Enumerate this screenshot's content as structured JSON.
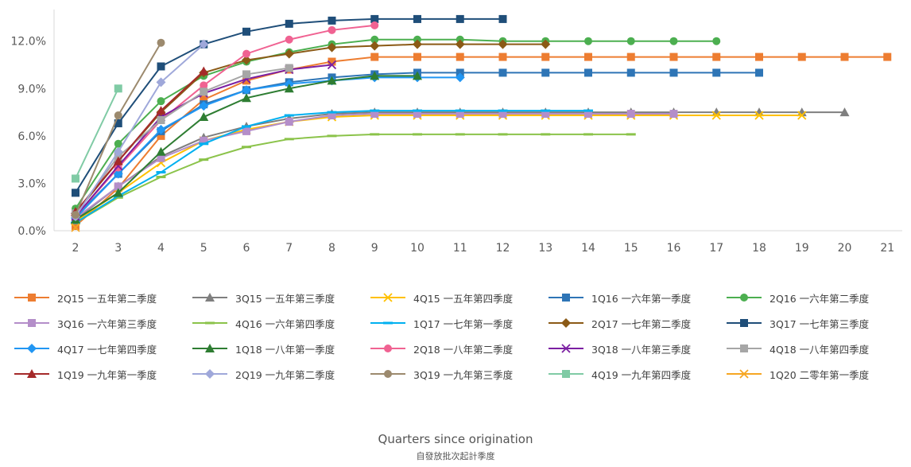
{
  "chart_data": {
    "type": "line",
    "xlabel": "Quarters since origination",
    "xlabel_zh": "自發放批次起計季度",
    "ylabel": "",
    "x_categories": [
      2,
      3,
      4,
      5,
      6,
      7,
      8,
      9,
      10,
      11,
      12,
      13,
      14,
      15,
      16,
      17,
      18,
      19,
      20,
      21
    ],
    "ylim": [
      0,
      0.14
    ],
    "yticks": [
      "0.0%",
      "3.0%",
      "6.0%",
      "9.0%",
      "12.0%"
    ],
    "ytick_values": [
      0,
      0.03,
      0.06,
      0.09,
      0.12
    ],
    "legend_position": "bottom",
    "series": [
      {
        "name": "2Q15 一五年第二季度",
        "color": "#ED7D31",
        "marker": "square",
        "start": 2,
        "values": [
          0.003,
          0.027,
          0.06,
          0.083,
          0.095,
          0.102,
          0.107,
          0.11,
          0.11,
          0.11,
          0.11,
          0.11,
          0.11,
          0.11,
          0.11,
          0.11,
          0.11,
          0.11,
          0.11,
          0.11
        ]
      },
      {
        "name": "3Q15 一五年第三季度",
        "color": "#7F7F7F",
        "marker": "triangle",
        "start": 2,
        "values": [
          0.007,
          0.028,
          0.047,
          0.059,
          0.066,
          0.071,
          0.074,
          0.075,
          0.075,
          0.075,
          0.075,
          0.075,
          0.075,
          0.075,
          0.075,
          0.075,
          0.075,
          0.075,
          0.075
        ]
      },
      {
        "name": "4Q15 一五年第四季度",
        "color": "#FFC000",
        "marker": "x",
        "start": 2,
        "values": [
          0.006,
          0.024,
          0.043,
          0.057,
          0.064,
          0.069,
          0.072,
          0.073,
          0.073,
          0.073,
          0.073,
          0.073,
          0.073,
          0.073,
          0.073,
          0.073,
          0.073,
          0.073
        ]
      },
      {
        "name": "1Q16 一六年第一季度",
        "color": "#2E75B6",
        "marker": "square",
        "start": 2,
        "values": [
          0.009,
          0.036,
          0.063,
          0.08,
          0.089,
          0.094,
          0.097,
          0.099,
          0.1,
          0.1,
          0.1,
          0.1,
          0.1,
          0.1,
          0.1,
          0.1,
          0.1
        ]
      },
      {
        "name": "2Q16 一六年第二季度",
        "color": "#4CAF50",
        "marker": "circle",
        "start": 2,
        "values": [
          0.014,
          0.055,
          0.082,
          0.098,
          0.107,
          0.113,
          0.118,
          0.121,
          0.121,
          0.121,
          0.12,
          0.12,
          0.12,
          0.12,
          0.12,
          0.12
        ]
      },
      {
        "name": "3Q16 一六年第三季度",
        "color": "#B48EC9",
        "marker": "square",
        "start": 2,
        "values": [
          0.008,
          0.028,
          0.046,
          0.057,
          0.063,
          0.069,
          0.073,
          0.074,
          0.074,
          0.074,
          0.074,
          0.074,
          0.074,
          0.074,
          0.074
        ]
      },
      {
        "name": "4Q16 一六年第四季度",
        "color": "#8BC34A",
        "marker": "dash",
        "start": 2,
        "values": [
          0.005,
          0.021,
          0.034,
          0.045,
          0.053,
          0.058,
          0.06,
          0.061,
          0.061,
          0.061,
          0.061,
          0.061,
          0.061,
          0.061
        ]
      },
      {
        "name": "1Q17 一七年第一季度",
        "color": "#00B0F0",
        "marker": "dash",
        "start": 2,
        "values": [
          0.005,
          0.022,
          0.037,
          0.055,
          0.066,
          0.073,
          0.075,
          0.076,
          0.076,
          0.076,
          0.076,
          0.076,
          0.076
        ]
      },
      {
        "name": "2Q17 一七年第二季度",
        "color": "#8B5A16",
        "marker": "diamond",
        "start": 2,
        "values": [
          0.011,
          0.044,
          0.075,
          0.1,
          0.108,
          0.112,
          0.116,
          0.117,
          0.118,
          0.118,
          0.118,
          0.118
        ]
      },
      {
        "name": "3Q17 一七年第三季度",
        "color": "#1F4E79",
        "marker": "square",
        "start": 2,
        "values": [
          0.024,
          0.068,
          0.104,
          0.118,
          0.126,
          0.131,
          0.133,
          0.134,
          0.134,
          0.134,
          0.134
        ]
      },
      {
        "name": "4Q17 一七年第四季度",
        "color": "#2196F3",
        "marker": "diamond",
        "start": 2,
        "values": [
          0.008,
          0.036,
          0.064,
          0.079,
          0.089,
          0.093,
          0.095,
          0.097,
          0.097,
          0.097
        ]
      },
      {
        "name": "1Q18 一八年第一季度",
        "color": "#2E7D32",
        "marker": "triangle",
        "start": 2,
        "values": [
          0.007,
          0.024,
          0.05,
          0.072,
          0.084,
          0.09,
          0.095,
          0.098,
          0.098
        ]
      },
      {
        "name": "2Q18 一八年第二季度",
        "color": "#F06292",
        "marker": "circle",
        "start": 2,
        "values": [
          0.009,
          0.04,
          0.07,
          0.092,
          0.112,
          0.121,
          0.127,
          0.13
        ]
      },
      {
        "name": "3Q18 一八年第三季度",
        "color": "#7B1FA2",
        "marker": "x",
        "start": 2,
        "values": [
          0.009,
          0.041,
          0.072,
          0.087,
          0.096,
          0.102,
          0.105
        ]
      },
      {
        "name": "4Q18 一八年第四季度",
        "color": "#A6A6A6",
        "marker": "square",
        "start": 2,
        "values": [
          0.011,
          0.047,
          0.07,
          0.088,
          0.099,
          0.103
        ]
      },
      {
        "name": "1Q19 一九年第一季度",
        "color": "#A52A2A",
        "marker": "triangle",
        "start": 2,
        "values": [
          0.012,
          0.044,
          0.076,
          0.101
        ]
      },
      {
        "name": "2Q19 一九年第二季度",
        "color": "#9FA8DA",
        "marker": "diamond",
        "start": 2,
        "values": [
          0.009,
          0.05,
          0.094,
          0.118
        ]
      },
      {
        "name": "3Q19 一九年第三季度",
        "color": "#9C8A6E",
        "marker": "circle",
        "start": 2,
        "values": [
          0.01,
          0.073,
          0.119
        ]
      },
      {
        "name": "4Q19 一九年第四季度",
        "color": "#80CBA5",
        "marker": "square",
        "start": 2,
        "values": [
          0.033,
          0.09
        ]
      },
      {
        "name": "1Q20 二零年第一季度",
        "color": "#F6A623",
        "marker": "x",
        "start": 2,
        "values": [
          0.002
        ]
      }
    ]
  }
}
